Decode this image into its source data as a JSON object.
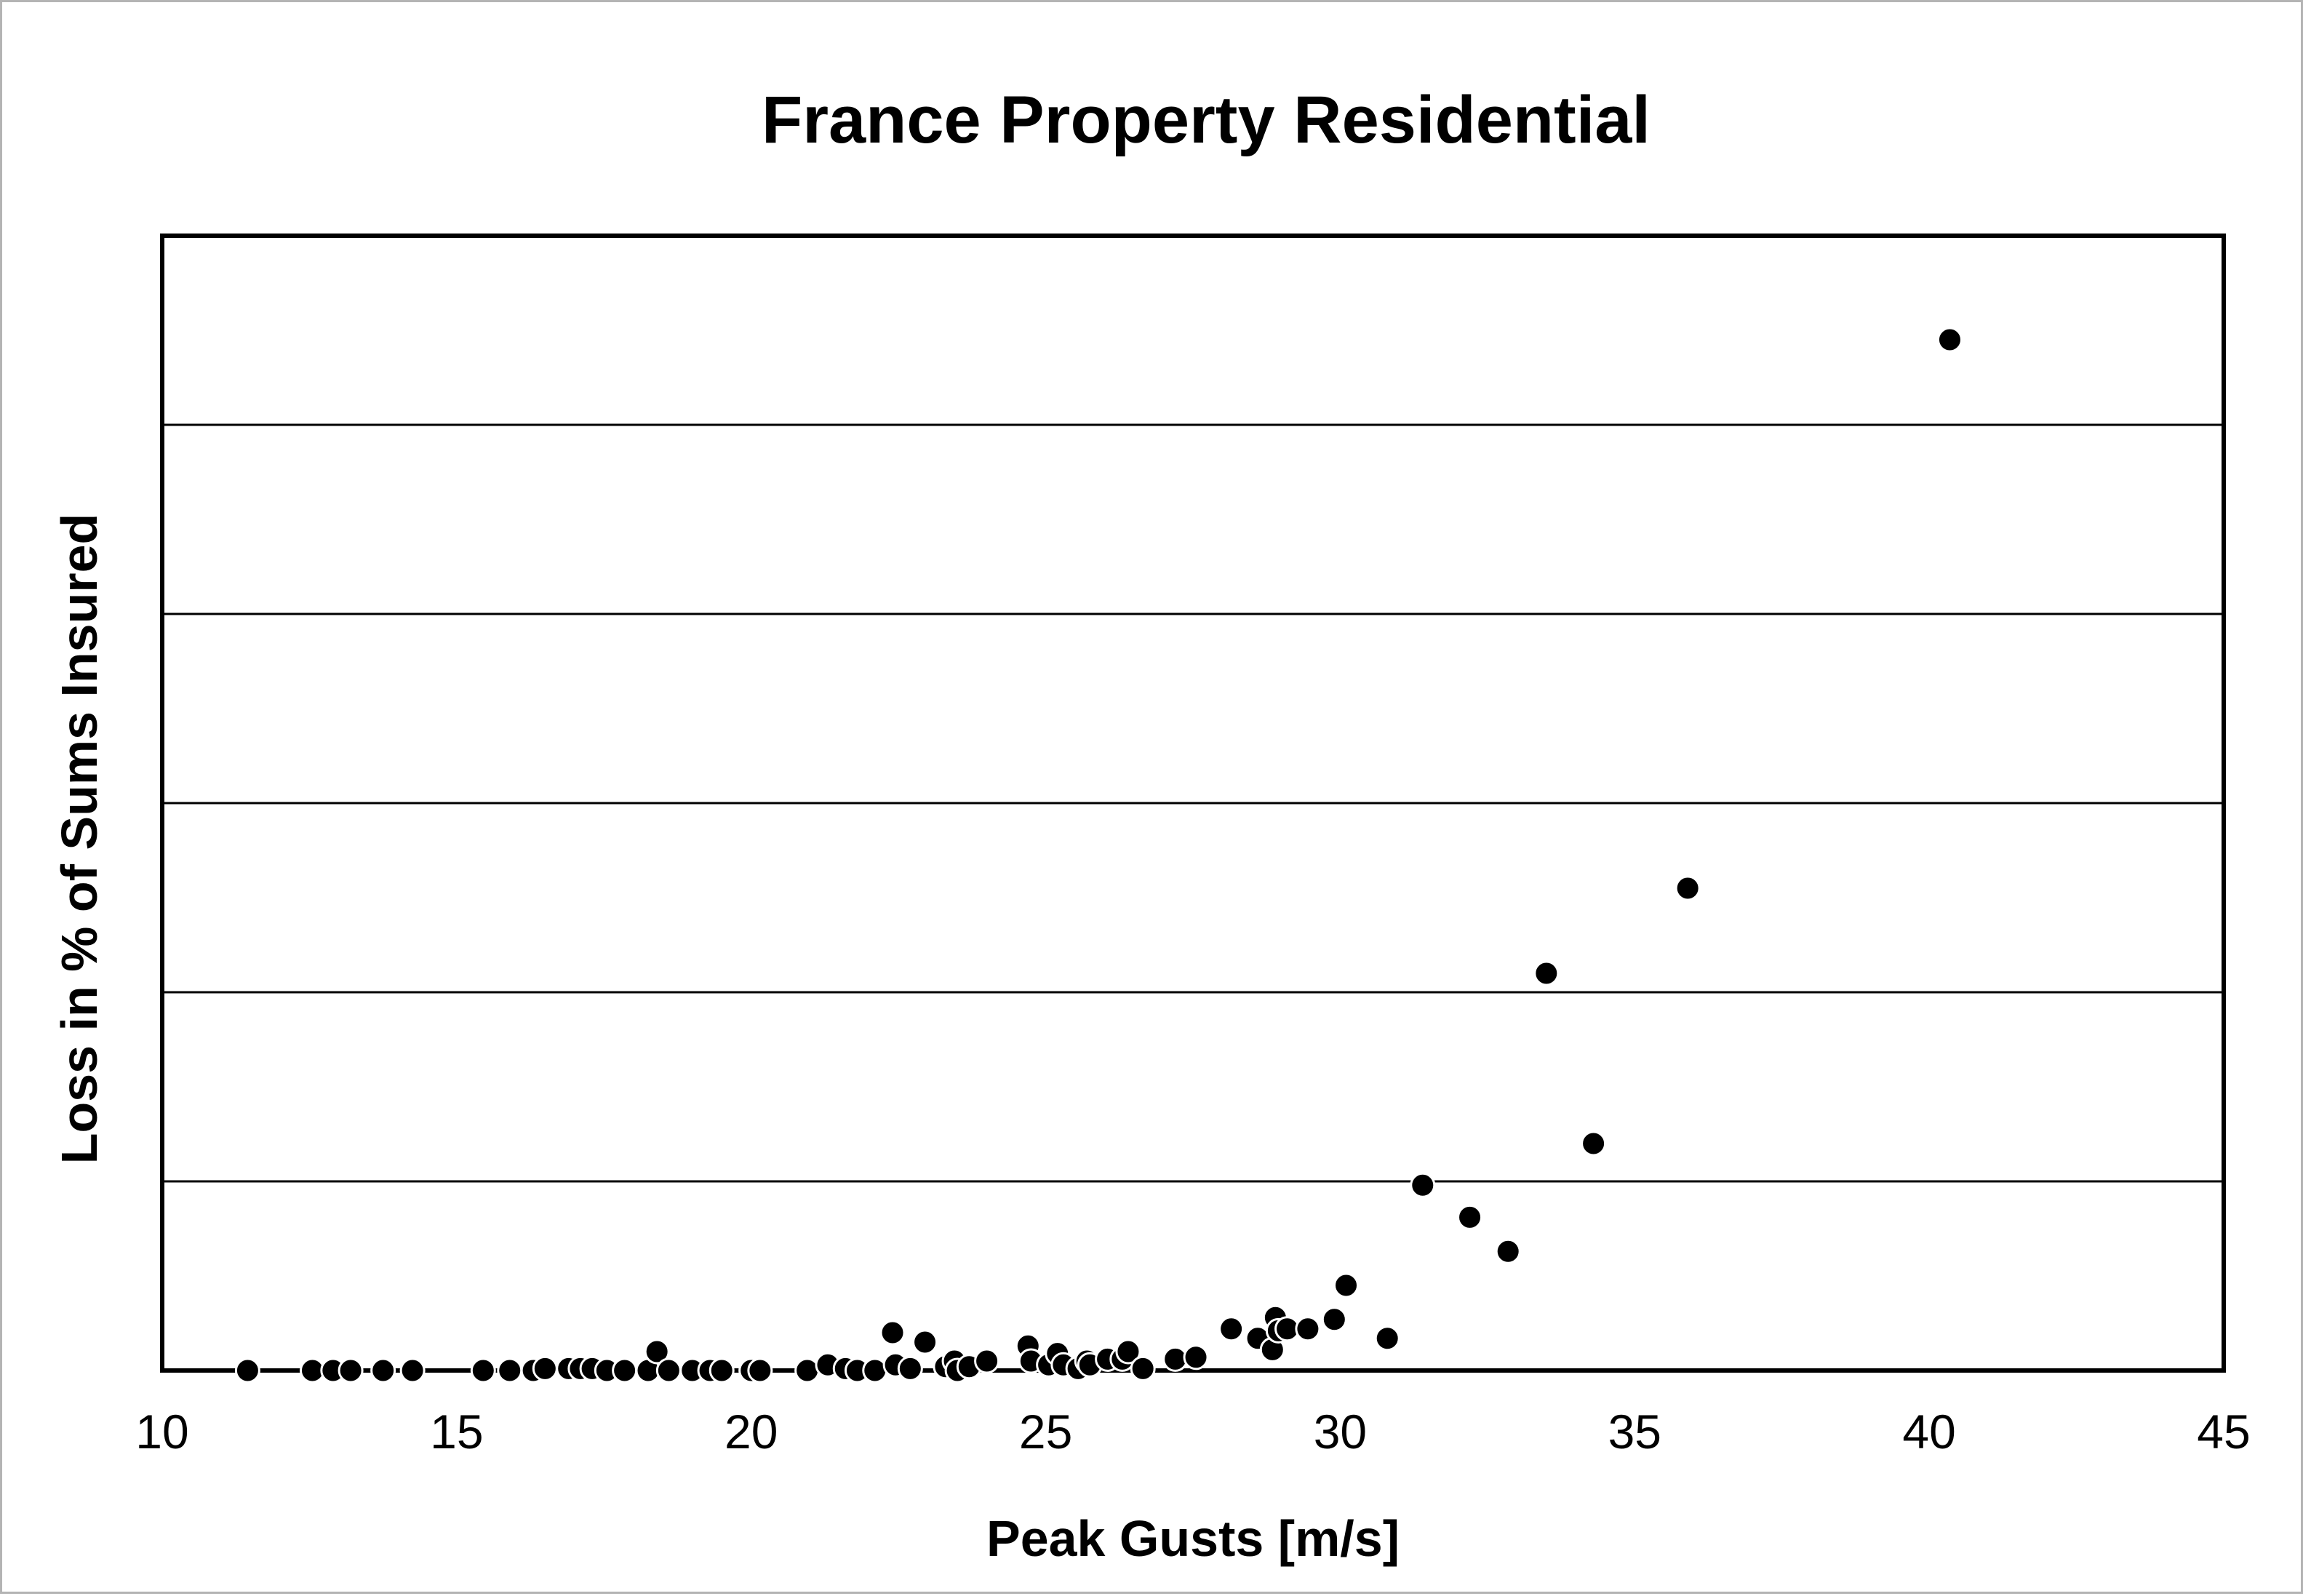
{
  "chart_data": {
    "type": "scatter",
    "title": "France Property Residential",
    "xlabel": "Peak Gusts [m/s]",
    "ylabel": "Loss in % of Sums Insured",
    "xlim": [
      10,
      45
    ],
    "ylim": [
      0,
      6
    ],
    "x_ticks": [
      10,
      15,
      20,
      25,
      30,
      35,
      40,
      45
    ],
    "y_gridlines": [
      1,
      2,
      3,
      4,
      5
    ],
    "y_tick_labels_shown": false,
    "grid": "horizontal",
    "legend": "none",
    "marker_color": "#000000",
    "points": [
      {
        "x": 11.45,
        "y": 0.0
      },
      {
        "x": 12.55,
        "y": 0.0
      },
      {
        "x": 12.9,
        "y": 0.0
      },
      {
        "x": 13.2,
        "y": 0.0
      },
      {
        "x": 13.75,
        "y": 0.0
      },
      {
        "x": 14.25,
        "y": 0.0
      },
      {
        "x": 15.45,
        "y": 0.0
      },
      {
        "x": 15.9,
        "y": 0.0
      },
      {
        "x": 16.3,
        "y": 0.0
      },
      {
        "x": 16.5,
        "y": 0.01
      },
      {
        "x": 16.9,
        "y": 0.01
      },
      {
        "x": 17.1,
        "y": 0.01
      },
      {
        "x": 17.3,
        "y": 0.01
      },
      {
        "x": 17.55,
        "y": 0.0
      },
      {
        "x": 17.85,
        "y": 0.0
      },
      {
        "x": 18.25,
        "y": 0.0
      },
      {
        "x": 18.4,
        "y": 0.1
      },
      {
        "x": 18.6,
        "y": 0.0
      },
      {
        "x": 19.0,
        "y": 0.0
      },
      {
        "x": 19.3,
        "y": 0.0
      },
      {
        "x": 19.5,
        "y": 0.0
      },
      {
        "x": 20.0,
        "y": 0.0
      },
      {
        "x": 20.15,
        "y": 0.0
      },
      {
        "x": 20.95,
        "y": 0.0
      },
      {
        "x": 21.3,
        "y": 0.03
      },
      {
        "x": 21.6,
        "y": 0.01
      },
      {
        "x": 21.8,
        "y": 0.0
      },
      {
        "x": 22.1,
        "y": 0.0
      },
      {
        "x": 22.4,
        "y": 0.2
      },
      {
        "x": 22.45,
        "y": 0.03
      },
      {
        "x": 22.7,
        "y": 0.01
      },
      {
        "x": 22.95,
        "y": 0.15
      },
      {
        "x": 23.3,
        "y": 0.02
      },
      {
        "x": 23.45,
        "y": 0.05
      },
      {
        "x": 23.5,
        "y": 0.0
      },
      {
        "x": 23.7,
        "y": 0.02
      },
      {
        "x": 24.0,
        "y": 0.05
      },
      {
        "x": 24.7,
        "y": 0.13
      },
      {
        "x": 24.75,
        "y": 0.05
      },
      {
        "x": 25.05,
        "y": 0.03
      },
      {
        "x": 25.2,
        "y": 0.09
      },
      {
        "x": 25.3,
        "y": 0.03
      },
      {
        "x": 25.55,
        "y": 0.01
      },
      {
        "x": 25.7,
        "y": 0.05
      },
      {
        "x": 25.75,
        "y": 0.03
      },
      {
        "x": 26.05,
        "y": 0.06
      },
      {
        "x": 26.3,
        "y": 0.06
      },
      {
        "x": 26.4,
        "y": 0.1
      },
      {
        "x": 26.65,
        "y": 0.01
      },
      {
        "x": 27.2,
        "y": 0.06
      },
      {
        "x": 27.55,
        "y": 0.07
      },
      {
        "x": 28.15,
        "y": 0.22
      },
      {
        "x": 28.6,
        "y": 0.17
      },
      {
        "x": 28.85,
        "y": 0.11
      },
      {
        "x": 28.9,
        "y": 0.28
      },
      {
        "x": 28.95,
        "y": 0.21
      },
      {
        "x": 29.1,
        "y": 0.22
      },
      {
        "x": 29.45,
        "y": 0.22
      },
      {
        "x": 29.9,
        "y": 0.27
      },
      {
        "x": 30.1,
        "y": 0.45
      },
      {
        "x": 30.8,
        "y": 0.17
      },
      {
        "x": 31.4,
        "y": 0.98
      },
      {
        "x": 32.2,
        "y": 0.81
      },
      {
        "x": 32.85,
        "y": 0.63
      },
      {
        "x": 33.5,
        "y": 2.1
      },
      {
        "x": 34.3,
        "y": 1.2
      },
      {
        "x": 35.9,
        "y": 2.55
      },
      {
        "x": 40.35,
        "y": 5.45
      }
    ]
  }
}
